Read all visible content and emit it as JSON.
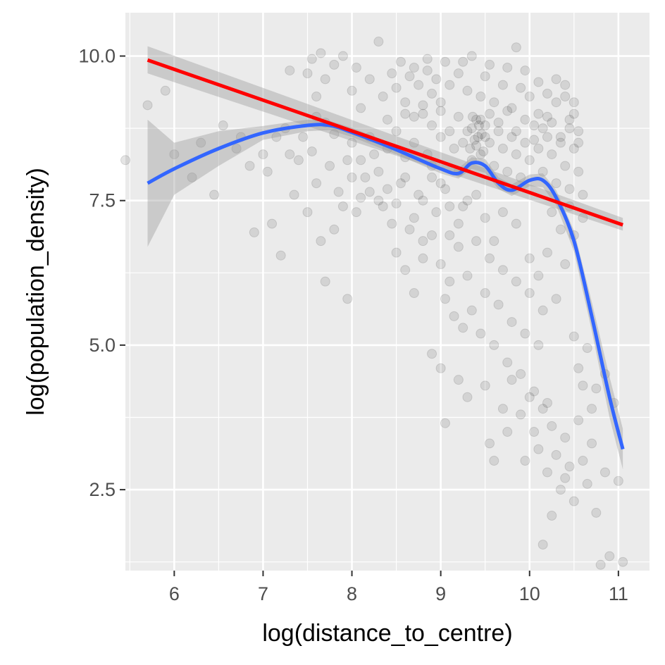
{
  "chart_data": {
    "type": "scatter",
    "title": "",
    "xlabel": "log(distance_to_centre)",
    "ylabel": "log(population_density)",
    "xlim": [
      5.45,
      11.35
    ],
    "ylim": [
      1.1,
      10.75
    ],
    "xticks": [
      6,
      7,
      8,
      9,
      10,
      11
    ],
    "yticks": [
      2.5,
      5.0,
      7.5,
      10.0
    ],
    "xtick_labels": [
      "6",
      "7",
      "8",
      "9",
      "10",
      "11"
    ],
    "ytick_labels": [
      "2.5",
      "5.0",
      "7.5",
      "10.0"
    ],
    "grid": true,
    "background": "#ebebeb",
    "point_color": "#000000",
    "point_alpha": 0.1,
    "points": [
      [
        5.45,
        8.2
      ],
      [
        5.7,
        9.15
      ],
      [
        5.9,
        9.4
      ],
      [
        6.3,
        8.5
      ],
      [
        6.45,
        7.6
      ],
      [
        6.7,
        8.4
      ],
      [
        6.85,
        8.1
      ],
      [
        6.9,
        6.95
      ],
      [
        7.05,
        8.0
      ],
      [
        7.1,
        7.1
      ],
      [
        7.2,
        6.55
      ],
      [
        7.3,
        8.3
      ],
      [
        7.35,
        7.6
      ],
      [
        7.45,
        8.6
      ],
      [
        7.5,
        7.3
      ],
      [
        7.6,
        7.8
      ],
      [
        7.65,
        6.8
      ],
      [
        7.7,
        6.1
      ],
      [
        7.75,
        8.1
      ],
      [
        7.8,
        7.0
      ],
      [
        7.9,
        7.4
      ],
      [
        7.95,
        5.8
      ],
      [
        7.3,
        9.75
      ],
      [
        7.5,
        9.7
      ],
      [
        7.55,
        9.95
      ],
      [
        7.6,
        9.3
      ],
      [
        7.65,
        10.05
      ],
      [
        7.7,
        9.6
      ],
      [
        7.8,
        9.85
      ],
      [
        7.9,
        10.0
      ],
      [
        8.0,
        9.4
      ],
      [
        8.05,
        9.8
      ],
      [
        8.1,
        9.1
      ],
      [
        8.2,
        9.6
      ],
      [
        8.3,
        10.25
      ],
      [
        8.35,
        9.3
      ],
      [
        8.4,
        8.9
      ],
      [
        8.45,
        9.7
      ],
      [
        8.5,
        9.45
      ],
      [
        8.55,
        9.9
      ],
      [
        8.6,
        9.2
      ],
      [
        8.65,
        9.65
      ],
      [
        8.7,
        9.8
      ],
      [
        8.75,
        9.5
      ],
      [
        8.8,
        9.0
      ],
      [
        8.85,
        9.75
      ],
      [
        8.9,
        9.35
      ],
      [
        8.95,
        9.6
      ],
      [
        9.0,
        9.2
      ],
      [
        9.1,
        9.5
      ],
      [
        9.2,
        9.7
      ],
      [
        9.3,
        9.4
      ],
      [
        9.35,
        10.0
      ],
      [
        9.45,
        9.3
      ],
      [
        9.5,
        9.65
      ],
      [
        9.6,
        9.2
      ],
      [
        9.7,
        9.5
      ],
      [
        9.8,
        9.1
      ],
      [
        9.85,
        10.15
      ],
      [
        9.9,
        9.45
      ],
      [
        10.0,
        9.3
      ],
      [
        10.1,
        9.0
      ],
      [
        10.2,
        8.95
      ],
      [
        10.3,
        9.2
      ],
      [
        10.4,
        9.5
      ],
      [
        10.45,
        8.9
      ],
      [
        10.5,
        9.2
      ],
      [
        10.55,
        8.7
      ],
      [
        8.0,
        8.5
      ],
      [
        8.1,
        8.2
      ],
      [
        8.15,
        7.9
      ],
      [
        8.2,
        8.6
      ],
      [
        8.3,
        8.0
      ],
      [
        8.35,
        7.4
      ],
      [
        8.4,
        8.4
      ],
      [
        8.45,
        7.1
      ],
      [
        8.5,
        8.7
      ],
      [
        8.55,
        7.8
      ],
      [
        8.6,
        8.25
      ],
      [
        8.65,
        7.0
      ],
      [
        8.7,
        8.5
      ],
      [
        8.75,
        7.6
      ],
      [
        8.8,
        6.8
      ],
      [
        8.85,
        8.3
      ],
      [
        8.9,
        7.9
      ],
      [
        8.95,
        7.3
      ],
      [
        9.0,
        8.6
      ],
      [
        9.05,
        7.7
      ],
      [
        9.1,
        6.9
      ],
      [
        9.15,
        8.4
      ],
      [
        9.2,
        8.0
      ],
      [
        9.25,
        7.4
      ],
      [
        9.3,
        8.7
      ],
      [
        9.35,
        8.2
      ],
      [
        9.4,
        8.9
      ],
      [
        9.42,
        8.6
      ],
      [
        9.45,
        8.3
      ],
      [
        9.5,
        8.8
      ],
      [
        9.55,
        8.5
      ],
      [
        9.6,
        8.1
      ],
      [
        9.65,
        8.7
      ],
      [
        9.7,
        8.4
      ],
      [
        9.75,
        8.0
      ],
      [
        9.8,
        8.6
      ],
      [
        9.85,
        8.3
      ],
      [
        9.9,
        7.9
      ],
      [
        9.95,
        8.5
      ],
      [
        10.0,
        8.2
      ],
      [
        10.05,
        8.8
      ],
      [
        10.1,
        8.4
      ],
      [
        10.15,
        8.0
      ],
      [
        10.2,
        8.6
      ],
      [
        10.25,
        8.3
      ],
      [
        10.3,
        7.8
      ],
      [
        10.35,
        8.5
      ],
      [
        10.4,
        8.1
      ],
      [
        10.45,
        7.7
      ],
      [
        10.5,
        8.4
      ],
      [
        10.55,
        8.0
      ],
      [
        10.6,
        7.6
      ],
      [
        9.35,
        8.75
      ],
      [
        9.38,
        8.55
      ],
      [
        9.4,
        8.45
      ],
      [
        9.43,
        8.8
      ],
      [
        9.46,
        8.65
      ],
      [
        9.48,
        8.35
      ],
      [
        9.5,
        8.6
      ],
      [
        9.33,
        8.4
      ],
      [
        9.36,
        8.95
      ],
      [
        9.45,
        8.9
      ],
      [
        8.5,
        6.6
      ],
      [
        8.6,
        6.3
      ],
      [
        8.7,
        5.9
      ],
      [
        8.8,
        6.5
      ],
      [
        8.9,
        6.9
      ],
      [
        9.0,
        6.4
      ],
      [
        9.05,
        5.8
      ],
      [
        9.1,
        6.1
      ],
      [
        9.15,
        5.5
      ],
      [
        9.2,
        6.7
      ],
      [
        9.25,
        5.3
      ],
      [
        9.3,
        6.2
      ],
      [
        9.35,
        5.6
      ],
      [
        9.4,
        6.8
      ],
      [
        9.45,
        5.2
      ],
      [
        9.5,
        5.9
      ],
      [
        9.55,
        6.5
      ],
      [
        9.6,
        5.0
      ],
      [
        9.65,
        5.7
      ],
      [
        9.7,
        6.3
      ],
      [
        9.75,
        4.7
      ],
      [
        9.8,
        5.4
      ],
      [
        9.85,
        6.1
      ],
      [
        9.9,
        4.5
      ],
      [
        9.95,
        5.2
      ],
      [
        10.0,
        5.9
      ],
      [
        10.05,
        4.2
      ],
      [
        10.1,
        5.0
      ],
      [
        10.15,
        5.6
      ],
      [
        10.2,
        4.0
      ],
      [
        8.9,
        4.85
      ],
      [
        9.0,
        4.6
      ],
      [
        9.05,
        3.65
      ],
      [
        9.2,
        4.4
      ],
      [
        9.3,
        4.1
      ],
      [
        9.5,
        4.3
      ],
      [
        9.55,
        3.3
      ],
      [
        9.6,
        3.0
      ],
      [
        9.7,
        3.9
      ],
      [
        9.75,
        3.5
      ],
      [
        9.8,
        4.4
      ],
      [
        9.9,
        3.8
      ],
      [
        9.95,
        3.0
      ],
      [
        10.0,
        4.1
      ],
      [
        10.05,
        3.5
      ],
      [
        10.1,
        3.2
      ],
      [
        10.15,
        3.9
      ],
      [
        10.2,
        2.8
      ],
      [
        10.25,
        3.6
      ],
      [
        10.3,
        3.1
      ],
      [
        10.35,
        2.5
      ],
      [
        10.4,
        3.4
      ],
      [
        10.45,
        2.9
      ],
      [
        10.5,
        2.3
      ],
      [
        10.55,
        3.7
      ],
      [
        10.6,
        3.0
      ],
      [
        10.65,
        2.6
      ],
      [
        10.7,
        3.3
      ],
      [
        10.75,
        2.1
      ],
      [
        10.8,
        1.2
      ],
      [
        10.85,
        2.8
      ],
      [
        10.9,
        1.35
      ],
      [
        11.0,
        2.65
      ],
      [
        11.05,
        1.25
      ],
      [
        10.15,
        1.55
      ],
      [
        10.25,
        2.05
      ],
      [
        10.4,
        2.7
      ],
      [
        10.6,
        4.3
      ],
      [
        10.7,
        3.9
      ],
      [
        10.5,
        5.15
      ],
      [
        10.55,
        4.6
      ],
      [
        10.65,
        4.95
      ],
      [
        10.75,
        4.25
      ],
      [
        10.85,
        4.5
      ],
      [
        10.95,
        4.0
      ],
      [
        10.1,
        6.2
      ],
      [
        10.2,
        6.6
      ],
      [
        10.3,
        5.8
      ],
      [
        10.4,
        6.4
      ],
      [
        10.5,
        6.9
      ],
      [
        10.6,
        7.2
      ],
      [
        10.45,
        7.4
      ],
      [
        10.35,
        7.0
      ],
      [
        10.25,
        7.3
      ],
      [
        10.0,
        6.5
      ],
      [
        9.85,
        7.1
      ],
      [
        9.7,
        7.3
      ],
      [
        9.6,
        6.8
      ],
      [
        9.5,
        7.2
      ],
      [
        9.4,
        7.6
      ],
      [
        9.3,
        7.5
      ],
      [
        9.2,
        7.1
      ],
      [
        9.1,
        7.4
      ],
      [
        9.0,
        7.8
      ],
      [
        8.9,
        8.1
      ],
      [
        8.8,
        7.5
      ],
      [
        8.7,
        7.2
      ],
      [
        8.6,
        7.9
      ],
      [
        8.5,
        7.45
      ],
      [
        8.4,
        7.7
      ],
      [
        8.3,
        7.5
      ],
      [
        8.25,
        8.3
      ],
      [
        8.2,
        7.65
      ],
      [
        8.1,
        7.55
      ],
      [
        8.05,
        7.3
      ],
      [
        8.0,
        7.9
      ],
      [
        7.95,
        8.2
      ],
      [
        7.85,
        7.65
      ],
      [
        7.8,
        8.65
      ],
      [
        7.7,
        8.85
      ],
      [
        7.6,
        8.95
      ],
      [
        7.55,
        8.35
      ],
      [
        7.4,
        8.2
      ],
      [
        7.25,
        8.75
      ],
      [
        7.15,
        8.6
      ],
      [
        7.0,
        8.3
      ],
      [
        6.75,
        8.6
      ],
      [
        6.55,
        8.8
      ],
      [
        6.2,
        7.9
      ],
      [
        6.0,
        8.3
      ],
      [
        8.6,
        9.0
      ],
      [
        8.7,
        8.95
      ],
      [
        8.8,
        9.15
      ],
      [
        8.9,
        8.8
      ],
      [
        9.0,
        9.05
      ],
      [
        9.1,
        8.7
      ],
      [
        9.2,
        8.95
      ],
      [
        9.25,
        8.5
      ],
      [
        9.55,
        9.0
      ],
      [
        9.65,
        8.85
      ],
      [
        9.75,
        9.05
      ],
      [
        9.85,
        8.7
      ],
      [
        9.95,
        8.9
      ],
      [
        10.05,
        8.55
      ],
      [
        10.15,
        8.75
      ],
      [
        10.25,
        8.85
      ],
      [
        10.35,
        8.6
      ],
      [
        10.45,
        8.75
      ],
      [
        10.55,
        8.5
      ],
      [
        10.3,
        9.6
      ],
      [
        10.4,
        9.3
      ],
      [
        10.5,
        9.0
      ],
      [
        10.2,
        9.35
      ],
      [
        10.1,
        9.55
      ],
      [
        9.95,
        9.75
      ],
      [
        9.75,
        9.8
      ],
      [
        9.55,
        9.85
      ],
      [
        9.25,
        9.9
      ],
      [
        9.05,
        9.9
      ],
      [
        8.85,
        9.95
      ]
    ],
    "fits": [
      {
        "name": "",
        "color": "#ff0000",
        "x": [
          5.7,
          11.05
        ],
        "y": [
          9.93,
          7.08
        ],
        "band_lower": [
          9.7,
          6.98
        ],
        "band_upper": [
          10.17,
          7.2
        ],
        "band_x": [
          5.7,
          11.05
        ]
      },
      {
        "name": "",
        "color": "#3366ff",
        "x": [
          5.7,
          6.0,
          6.5,
          7.0,
          7.5,
          7.75,
          8.0,
          8.5,
          9.0,
          9.2,
          9.35,
          9.5,
          9.65,
          9.8,
          10.0,
          10.15,
          10.3,
          10.5,
          10.7,
          10.9,
          11.05
        ],
        "y": [
          7.8,
          8.05,
          8.4,
          8.67,
          8.8,
          8.8,
          8.68,
          8.38,
          8.05,
          7.97,
          8.15,
          8.1,
          7.8,
          7.68,
          7.85,
          7.85,
          7.55,
          6.8,
          5.5,
          4.1,
          3.2
        ],
        "band_lower": [
          6.7,
          7.6,
          8.1,
          8.55,
          8.7,
          8.72,
          8.6,
          8.3,
          7.97,
          7.88,
          8.05,
          7.98,
          7.7,
          7.58,
          7.75,
          7.73,
          7.42,
          6.62,
          5.25,
          3.75,
          2.85
        ],
        "band_upper": [
          8.9,
          8.5,
          8.7,
          8.79,
          8.9,
          8.88,
          8.76,
          8.46,
          8.13,
          8.06,
          8.25,
          8.22,
          7.9,
          7.78,
          7.95,
          7.97,
          7.68,
          6.98,
          5.75,
          4.45,
          3.55
        ]
      }
    ]
  }
}
